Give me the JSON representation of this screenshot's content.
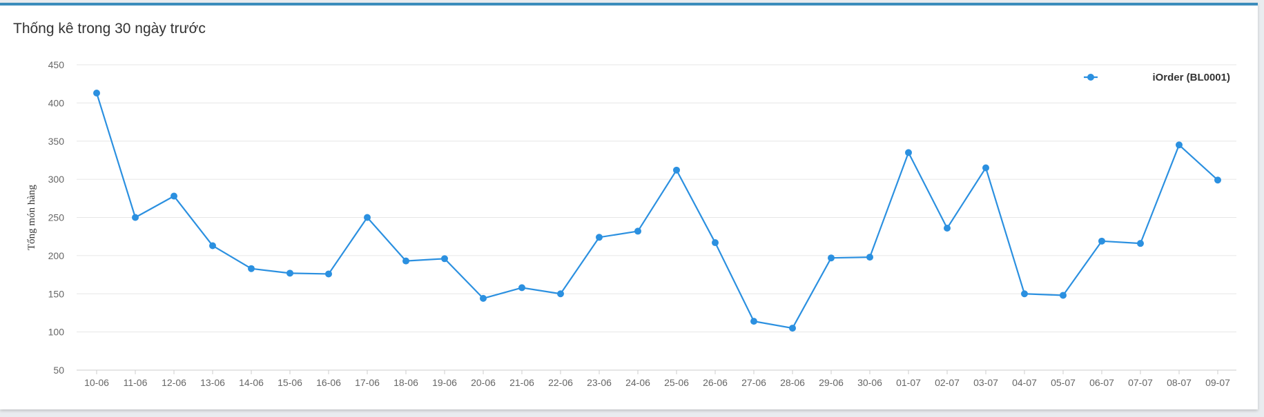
{
  "panel": {
    "title": "Thống kê trong 30 ngày trước"
  },
  "colors": {
    "accent": "#3c8dbc",
    "series": "#2b90e0",
    "grid": "#e6e6e6"
  },
  "chart_data": {
    "type": "line",
    "title": "",
    "xlabel": "",
    "ylabel": "Tổng món hàng",
    "ylim": [
      50,
      450
    ],
    "yticks": [
      50,
      100,
      150,
      200,
      250,
      300,
      350,
      400,
      450
    ],
    "grid": true,
    "legend_position": "top-right",
    "categories": [
      "10-06",
      "11-06",
      "12-06",
      "13-06",
      "14-06",
      "15-06",
      "16-06",
      "17-06",
      "18-06",
      "19-06",
      "20-06",
      "21-06",
      "22-06",
      "23-06",
      "24-06",
      "25-06",
      "26-06",
      "27-06",
      "28-06",
      "29-06",
      "30-06",
      "01-07",
      "02-07",
      "03-07",
      "04-07",
      "05-07",
      "06-07",
      "07-07",
      "08-07",
      "09-07"
    ],
    "series": [
      {
        "name": "iOrder (BL0001)",
        "values": [
          413,
          250,
          278,
          213,
          183,
          177,
          176,
          250,
          193,
          196,
          144,
          158,
          150,
          224,
          232,
          312,
          217,
          114,
          105,
          197,
          198,
          335,
          236,
          315,
          150,
          148,
          219,
          216,
          345,
          299
        ]
      }
    ]
  }
}
